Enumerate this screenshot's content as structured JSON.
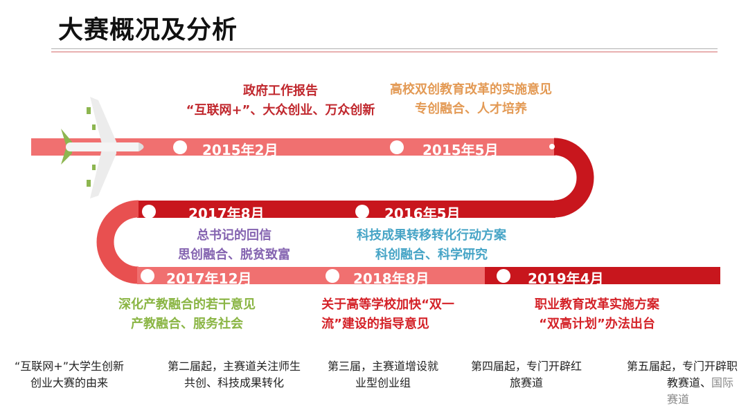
{
  "title": "大赛概况及分析",
  "colors": {
    "track_light": "#f07070",
    "track_dark": "#c8161d",
    "red": "#c0272d",
    "orange": "#e39a55",
    "purple": "#8463b0",
    "teal": "#46a4c6",
    "green": "#8ab544"
  },
  "icons": {
    "plane": "airplane-icon"
  },
  "milestones": [
    {
      "date": "2015年2月",
      "lines": [
        "政府工作报告",
        "“互联网+”、大众创业、万众创新"
      ]
    },
    {
      "date": "2015年5月",
      "lines": [
        "高校双创教育改革的实施意见",
        "专创融合、人才培养"
      ]
    },
    {
      "date": "2016年5月",
      "lines": [
        "科技成果转移转化行动方案",
        "科创融合、科学研究"
      ]
    },
    {
      "date": "2017年8月",
      "lines": [
        "总书记的回信",
        "思创融合、脱贫致富"
      ]
    },
    {
      "date": "2017年12月",
      "lines": [
        "深化产教融合的若干意见",
        "产教融合、服务社会"
      ]
    },
    {
      "date": "2018年8月",
      "lines": [
        "关于高等学校加快“双一",
        "流”建设的指导意见"
      ]
    },
    {
      "date": "2019年4月",
      "lines": [
        "职业教育改革实施方案",
        "“双高计划”办法出台"
      ]
    }
  ],
  "captions": [
    {
      "line1": "“互联网+”大学生创新",
      "line2": "创业大赛的由来"
    },
    {
      "line1": "第二届起，主赛道关注师生",
      "line2": "共创、科技成果转化"
    },
    {
      "line1": "第三届，主赛道增设就",
      "line2": "业型创业组"
    },
    {
      "line1": "第四届起，专门开辟红",
      "line2": "旅赛道"
    },
    {
      "line1": "第五届起，专门开辟职",
      "line2": "教赛道、",
      "line3": "国际赛道"
    }
  ]
}
